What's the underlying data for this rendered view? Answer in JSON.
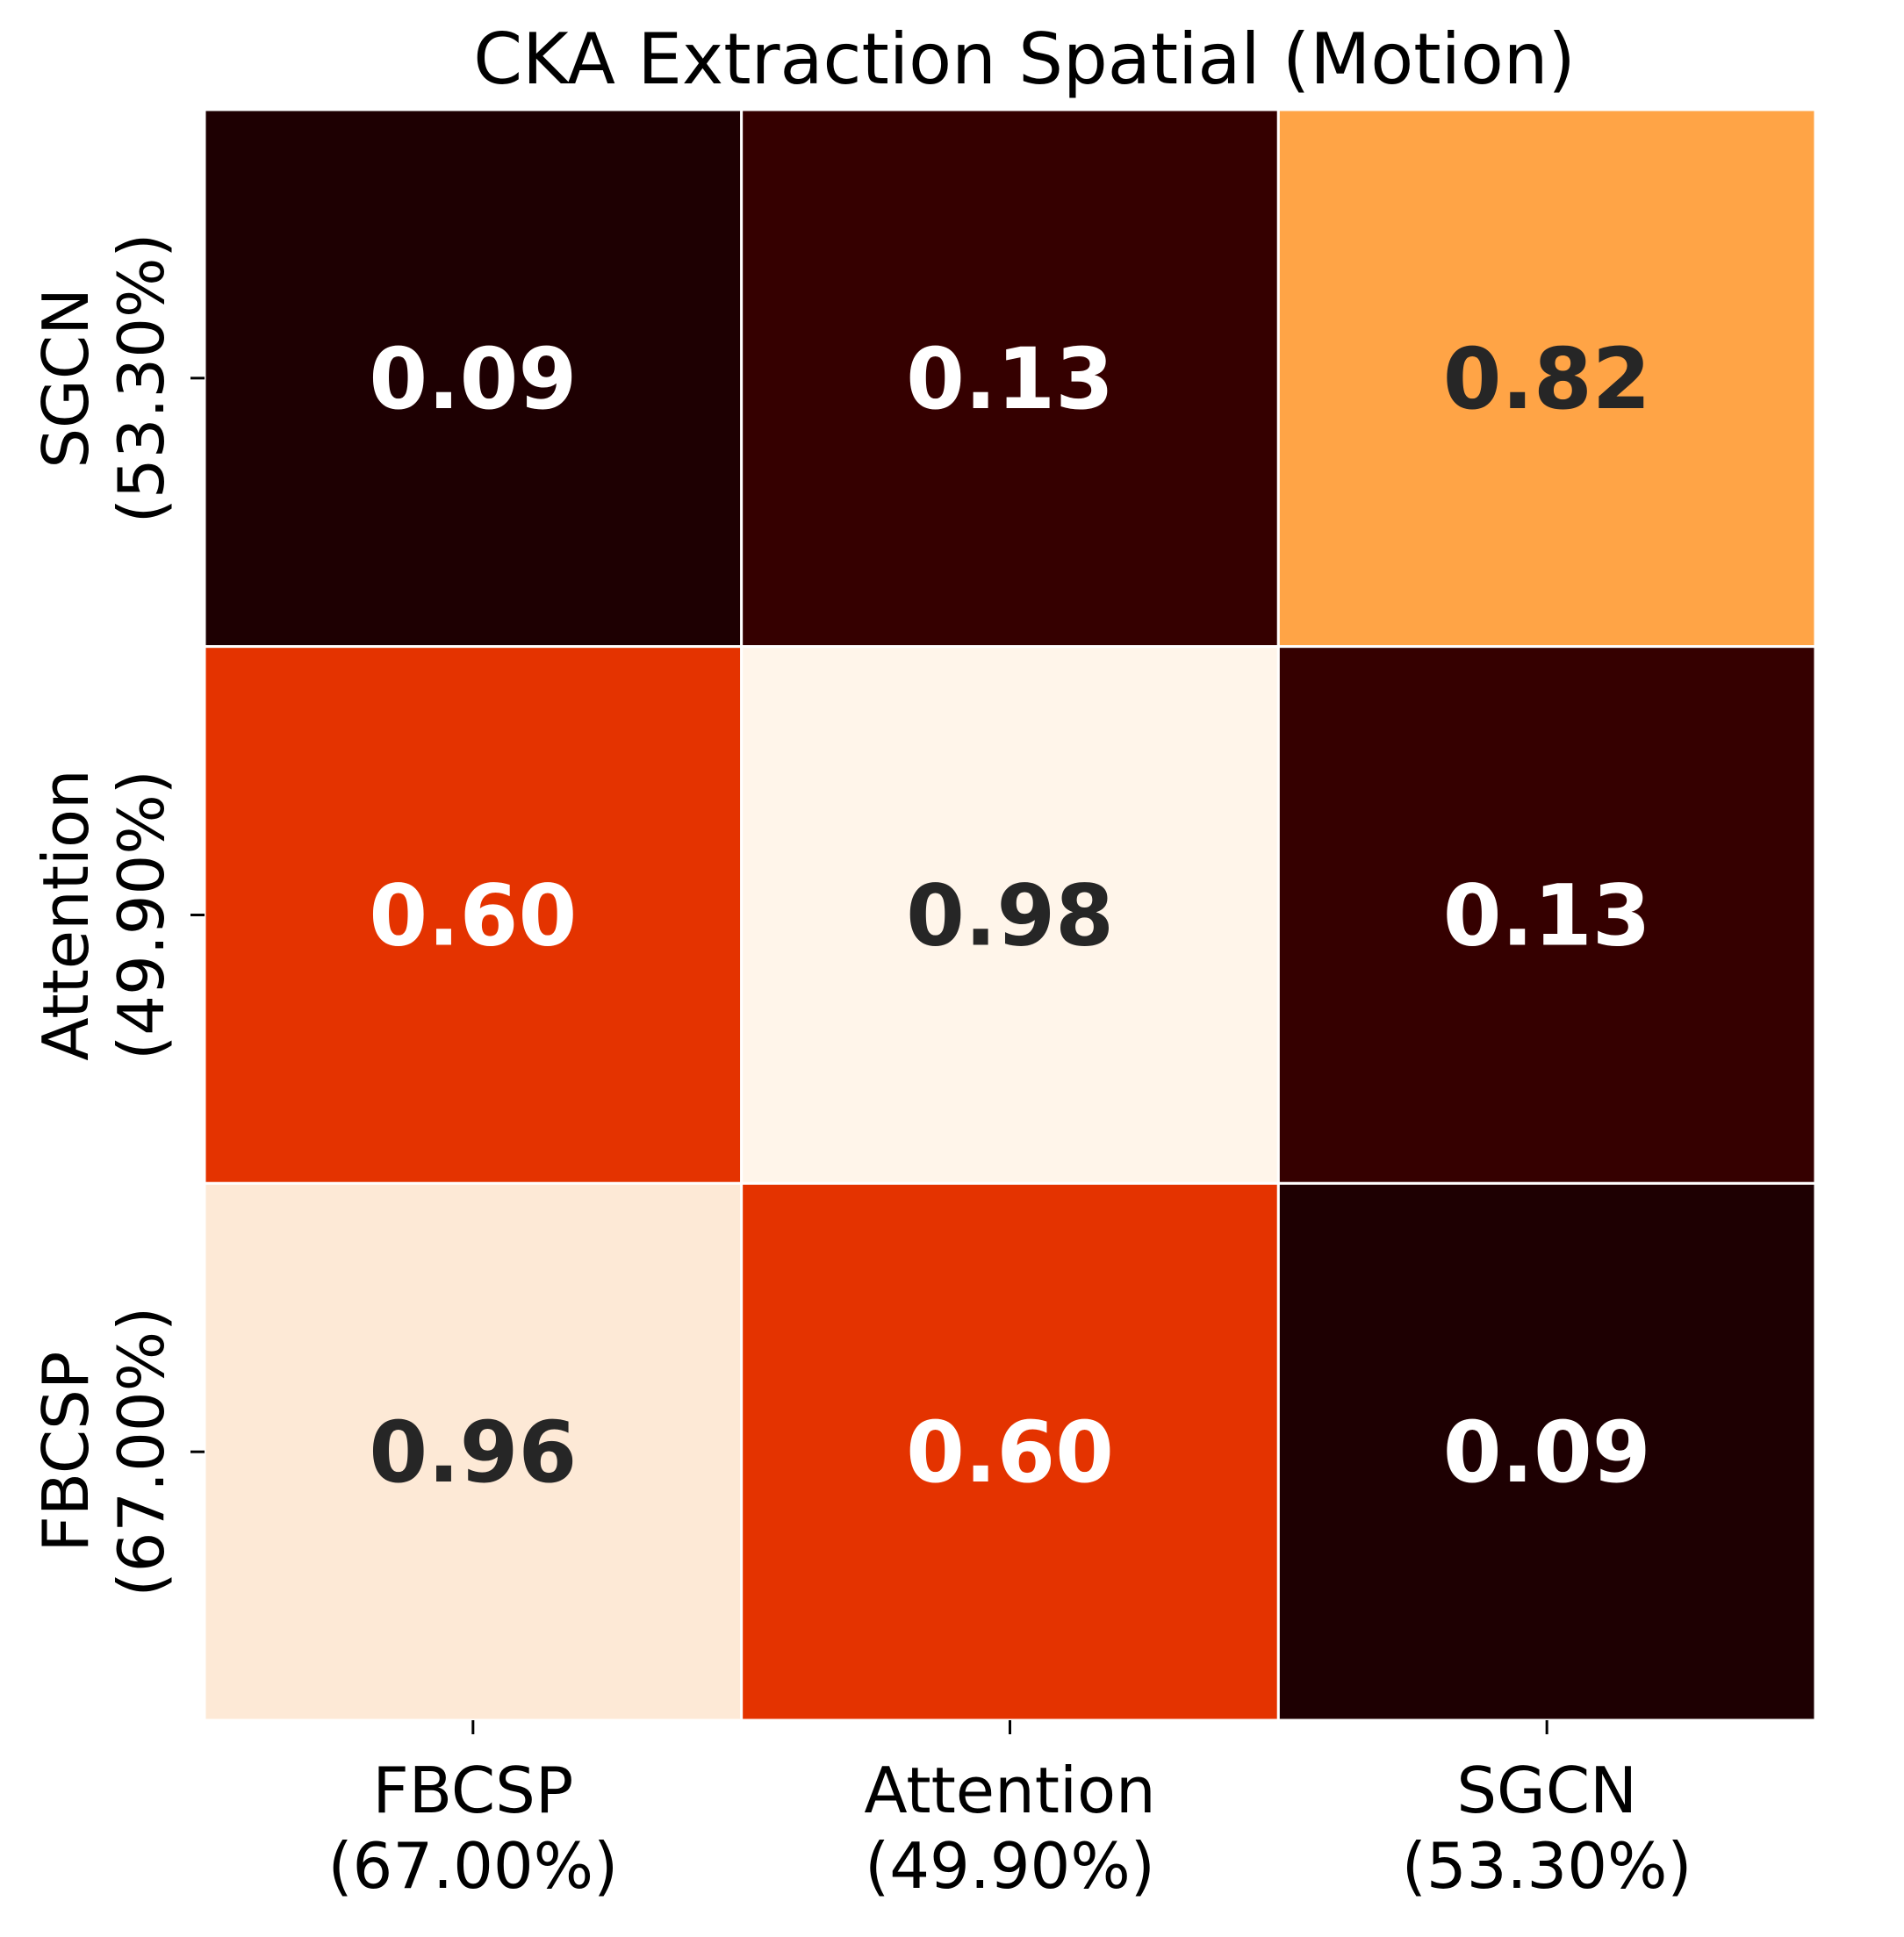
{
  "chart_data": {
    "type": "heatmap",
    "title": "CKA Extraction Spatial (Motion)",
    "x_categories": [
      [
        "FBCSP",
        "(67.00%)"
      ],
      [
        "Attention",
        "(49.90%)"
      ],
      [
        "SGCN",
        "(53.30%)"
      ]
    ],
    "y_categories_top_to_bottom": [
      [
        "SGCN",
        "(53.30%)"
      ],
      [
        "Attention",
        "(49.90%)"
      ],
      [
        "FBCSP",
        "(67.00%)"
      ]
    ],
    "values_top_to_bottom": [
      [
        0.09,
        0.13,
        0.82
      ],
      [
        0.6,
        0.98,
        0.13
      ],
      [
        0.96,
        0.6,
        0.09
      ]
    ],
    "cell_labels_top_to_bottom": [
      [
        "0.09",
        "0.13",
        "0.82"
      ],
      [
        "0.60",
        "0.98",
        "0.13"
      ],
      [
        "0.96",
        "0.60",
        "0.09"
      ]
    ],
    "cell_colors_top_to_bottom": [
      [
        "#1e0002",
        "#350000",
        "#ffa446"
      ],
      [
        "#e43300",
        "#fff5ea",
        "#350000"
      ],
      [
        "#fde9d6",
        "#e43300",
        "#1e0002"
      ]
    ],
    "label_colors_top_to_bottom": [
      [
        "#ffffff",
        "#ffffff",
        "#262626"
      ],
      [
        "#ffffff",
        "#262626",
        "#ffffff"
      ],
      [
        "#262626",
        "#ffffff",
        "#ffffff"
      ]
    ],
    "colormap": "gist_heat",
    "grid": false,
    "legend": "none"
  }
}
